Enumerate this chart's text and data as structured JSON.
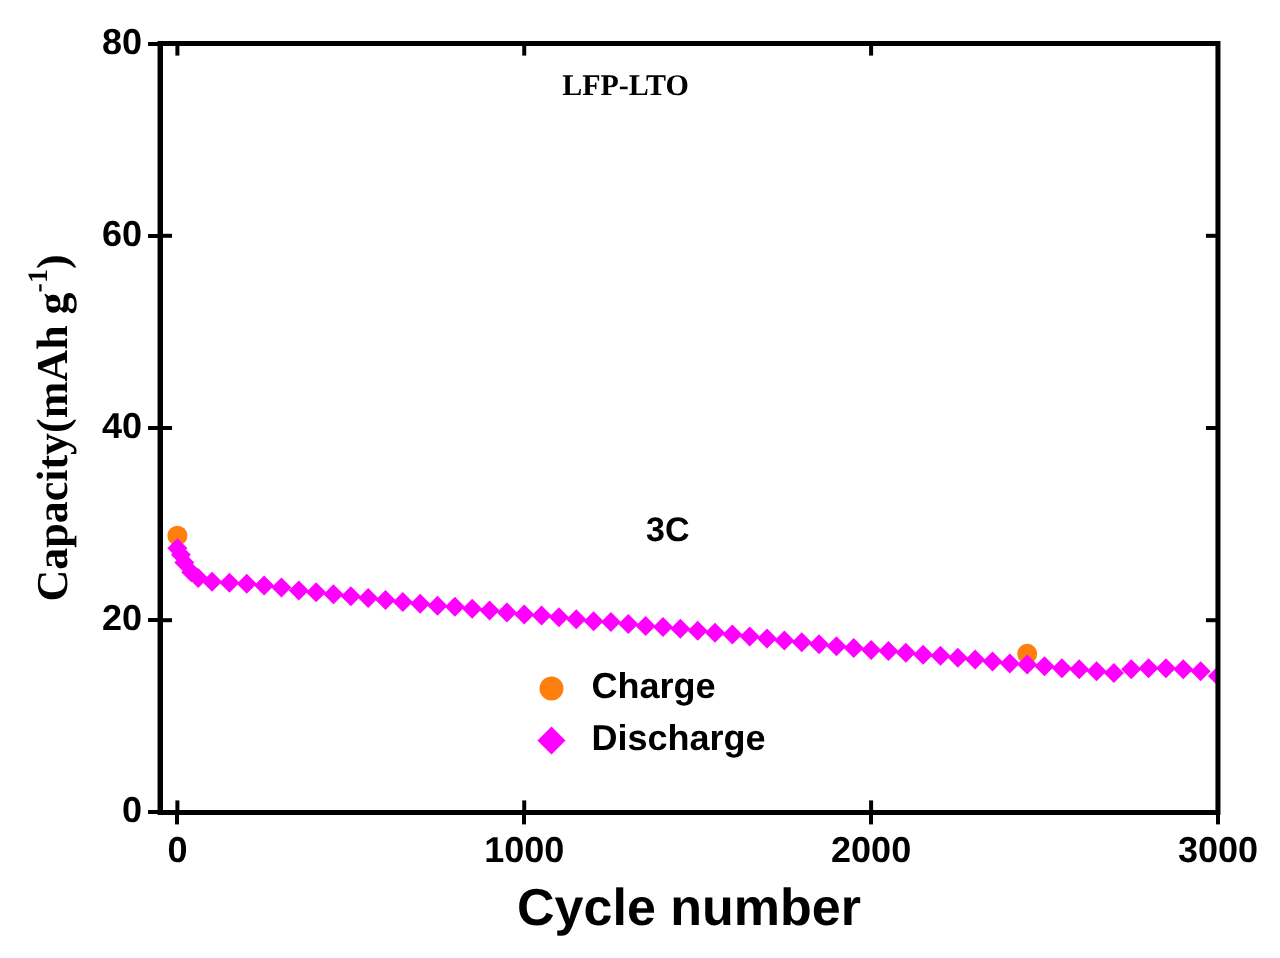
{
  "chart_data": {
    "type": "scatter",
    "title": "LFP-LTO",
    "xlabel": "Cycle number",
    "ylabel": "Capacity(mAh g$^{-1}$)",
    "annotations": [
      "3C"
    ],
    "xlim": [
      -50,
      3000
    ],
    "ylim": [
      0,
      80
    ],
    "xticks": [
      0,
      1000,
      2000,
      3000
    ],
    "yticks": [
      0,
      20,
      40,
      60,
      80
    ],
    "grid": false,
    "legend": "bottom",
    "series": [
      {
        "name": "Charge",
        "color": "#ff7f0e",
        "marker": "circle",
        "x": [
          0,
          2450
        ],
        "values": [
          28.8,
          16.5
        ]
      },
      {
        "name": "Discharge",
        "color": "#ff00ff",
        "marker": "diamond",
        "x": [
          0,
          10,
          20,
          40,
          60,
          100,
          150,
          200,
          250,
          300,
          350,
          400,
          450,
          500,
          550,
          600,
          650,
          700,
          750,
          800,
          850,
          900,
          950,
          1000,
          1050,
          1100,
          1150,
          1200,
          1250,
          1300,
          1350,
          1400,
          1450,
          1500,
          1550,
          1600,
          1650,
          1700,
          1750,
          1800,
          1850,
          1900,
          1950,
          2000,
          2050,
          2100,
          2150,
          2200,
          2250,
          2300,
          2350,
          2400,
          2450,
          2500,
          2550,
          2600,
          2650,
          2700,
          2750,
          2800,
          2850,
          2900,
          2950,
          3000
        ],
        "values": [
          27.5,
          26.8,
          26.0,
          25.0,
          24.4,
          24.0,
          23.9,
          23.8,
          23.6,
          23.4,
          23.1,
          22.9,
          22.7,
          22.5,
          22.3,
          22.1,
          21.9,
          21.7,
          21.5,
          21.4,
          21.2,
          21.0,
          20.8,
          20.6,
          20.5,
          20.3,
          20.1,
          19.9,
          19.8,
          19.6,
          19.4,
          19.3,
          19.1,
          18.9,
          18.7,
          18.5,
          18.3,
          18.1,
          17.9,
          17.7,
          17.5,
          17.3,
          17.1,
          16.9,
          16.8,
          16.6,
          16.4,
          16.3,
          16.1,
          15.9,
          15.7,
          15.5,
          15.4,
          15.2,
          15.0,
          14.9,
          14.7,
          14.5,
          14.9,
          15.0,
          15.0,
          14.9,
          14.7,
          14.2
        ]
      }
    ]
  }
}
